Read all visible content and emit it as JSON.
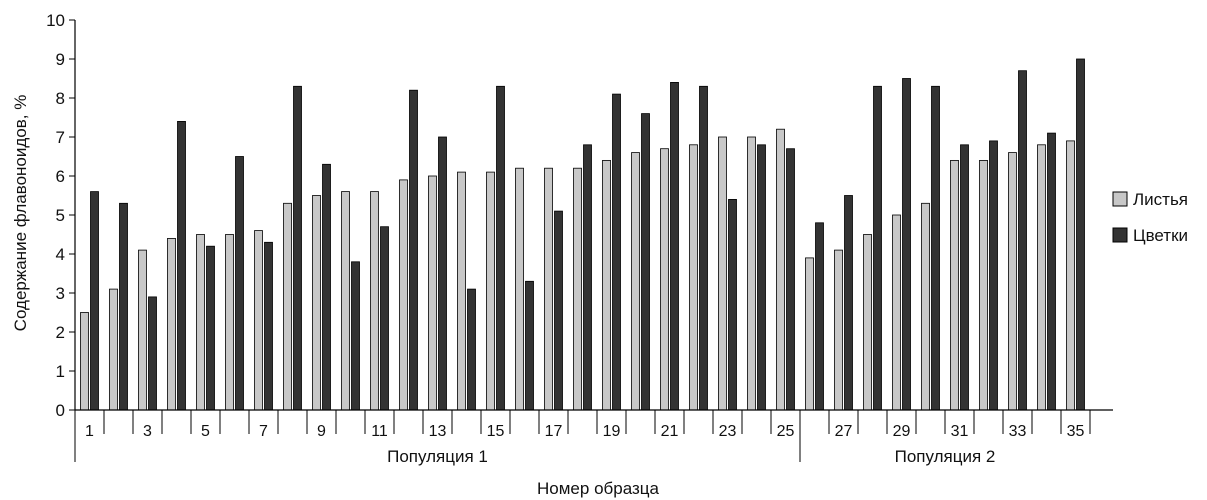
{
  "chart_data": {
    "type": "bar",
    "ylabel": "Содержание флавоноидов, %",
    "xlabel": "Номер образца",
    "ylim": [
      0,
      10
    ],
    "yticks": [
      "0",
      "1",
      "2",
      "3",
      "4",
      "5",
      "6",
      "7",
      "8",
      "9",
      "10"
    ],
    "grid": false,
    "legend_position": "right",
    "categories": [
      "1",
      "2",
      "3",
      "4",
      "5",
      "6",
      "7",
      "8",
      "9",
      "10",
      "11",
      "12",
      "13",
      "14",
      "15",
      "16",
      "17",
      "18",
      "19",
      "20",
      "21",
      "22",
      "23",
      "24",
      "25",
      "26",
      "27",
      "28",
      "29",
      "30",
      "31",
      "32",
      "33",
      "34",
      "35"
    ],
    "xtick_labels": [
      "1",
      "",
      "3",
      "",
      "5",
      "",
      "7",
      "",
      "9",
      "",
      "11",
      "",
      "13",
      "",
      "15",
      "",
      "17",
      "",
      "19",
      "",
      "21",
      "",
      "23",
      "",
      "25",
      "",
      "27",
      "",
      "29",
      "",
      "31",
      "",
      "33",
      "",
      "35"
    ],
    "groups": [
      {
        "label": "Популяция 1",
        "start": 1,
        "end": 25
      },
      {
        "label": "Популяция 2",
        "start": 26,
        "end": 35
      }
    ],
    "series": [
      {
        "name": "Листья",
        "color": "#c8c8c8",
        "values": [
          2.5,
          3.1,
          4.1,
          4.4,
          4.5,
          4.5,
          4.6,
          5.3,
          5.5,
          5.6,
          5.6,
          5.9,
          6.0,
          6.1,
          6.1,
          6.2,
          6.2,
          6.2,
          6.4,
          6.6,
          6.7,
          6.8,
          7.0,
          7.0,
          7.2,
          3.9,
          4.1,
          4.5,
          5.0,
          5.3,
          6.4,
          6.4,
          6.6,
          6.8,
          6.9
        ]
      },
      {
        "name": "Цветки",
        "color": "#333333",
        "values": [
          5.6,
          5.3,
          2.9,
          7.4,
          4.2,
          6.5,
          4.3,
          8.3,
          6.3,
          3.8,
          4.7,
          8.2,
          7.0,
          3.1,
          8.3,
          3.3,
          5.1,
          6.8,
          8.1,
          7.6,
          8.4,
          8.3,
          5.4,
          6.8,
          6.7,
          4.8,
          5.5,
          8.3,
          8.5,
          8.3,
          6.8,
          6.9,
          8.7,
          7.1,
          9.0
        ]
      }
    ]
  }
}
